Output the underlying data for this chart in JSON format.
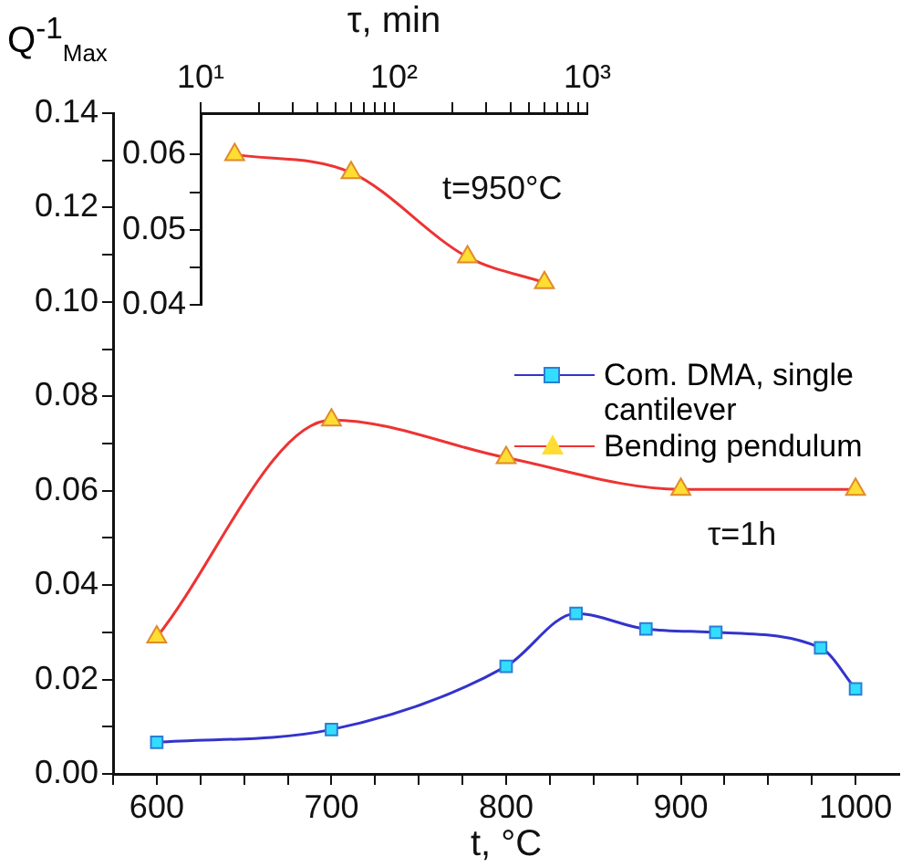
{
  "chart_data": [
    {
      "type": "line",
      "xlabel": "t, °C",
      "ylabel": "Q$^{-1}$$_{Max}$",
      "legend": "right",
      "grid": false,
      "xlim": [
        575,
        1025
      ],
      "xticks": [
        {
          "value": 575,
          "label": null
        },
        600,
        {
          "value": 625,
          "label": null
        },
        {
          "value": 650,
          "label": null
        },
        {
          "value": 675,
          "label": null
        },
        700,
        {
          "value": 725,
          "label": null
        },
        {
          "value": 750,
          "label": null
        },
        {
          "value": 775,
          "label": null
        },
        800,
        {
          "value": 825,
          "label": null
        },
        {
          "value": 850,
          "label": null
        },
        {
          "value": 875,
          "label": null
        },
        900,
        {
          "value": 925,
          "label": null
        },
        {
          "value": 950,
          "label": null
        },
        {
          "value": 975,
          "label": null
        },
        1000
      ],
      "ylim": [
        0,
        0.14
      ],
      "yticks": [
        "0.00",
        {
          "value": 0.01,
          "label": null
        },
        {
          "value": 0.02,
          "label": "0.02"
        },
        {
          "value": 0.03,
          "label": null
        },
        {
          "value": 0.04,
          "label": "0.04"
        },
        {
          "value": 0.05,
          "label": null
        },
        {
          "value": 0.06,
          "label": "0.06"
        },
        {
          "value": 0.07,
          "label": null
        },
        {
          "value": 0.08,
          "label": "0.08"
        },
        {
          "value": 0.09,
          "label": null
        },
        {
          "value": 0.1,
          "label": "0.10"
        },
        {
          "value": 0.11,
          "label": null
        },
        {
          "value": 0.12,
          "label": "0.12"
        },
        {
          "value": 0.13,
          "label": null
        },
        {
          "value": 0.14,
          "label": "0.14"
        }
      ],
      "annotations": [
        "τ=1h"
      ],
      "series": [
        {
          "name": "Com. DMA, single cantilever",
          "color": "#3333cc",
          "marker": "square",
          "x": [
            600,
            700,
            800,
            840,
            880,
            920,
            980,
            1000
          ],
          "values": [
            0.0067,
            0.0094,
            0.0228,
            0.034,
            0.0307,
            0.03,
            0.0267,
            0.018
          ]
        },
        {
          "name": "Bending pendulum",
          "color": "#ee3333",
          "marker": "triangle",
          "x": [
            600,
            700,
            800,
            900,
            1000
          ],
          "values": [
            0.029,
            0.075,
            0.067,
            0.0603,
            0.0603
          ]
        }
      ]
    },
    {
      "type": "line",
      "xlabel": "τ, min",
      "log": "x",
      "grid": false,
      "xlim": [
        10,
        1000
      ],
      "xticks": [
        {
          "value": 10,
          "label": "10¹"
        },
        {
          "value": 20,
          "label": null
        },
        {
          "value": 30,
          "label": null
        },
        {
          "value": 40,
          "label": null
        },
        {
          "value": 50,
          "label": null
        },
        {
          "value": 60,
          "label": null
        },
        {
          "value": 70,
          "label": null
        },
        {
          "value": 80,
          "label": null
        },
        {
          "value": 90,
          "label": null
        },
        {
          "value": 100,
          "label": "10²"
        },
        {
          "value": 200,
          "label": null
        },
        {
          "value": 300,
          "label": null
        },
        {
          "value": 400,
          "label": null
        },
        {
          "value": 500,
          "label": null
        },
        {
          "value": 600,
          "label": null
        },
        {
          "value": 700,
          "label": null
        },
        {
          "value": 800,
          "label": null
        },
        {
          "value": 900,
          "label": null
        },
        {
          "value": 1000,
          "label": "10³"
        }
      ],
      "ylim": [
        0.04,
        0.0655
      ],
      "yticks": [
        0.04,
        {
          "value": 0.045,
          "label": null
        },
        0.05,
        {
          "value": 0.055,
          "label": null
        },
        0.06
      ],
      "annotations": [
        "t=950°C"
      ],
      "series": [
        {
          "color": "#ee3333",
          "marker": "triangle",
          "x": [
            15,
            60,
            240,
            600
          ],
          "values": [
            0.06,
            0.0576,
            0.0464,
            0.043
          ]
        }
      ]
    }
  ]
}
